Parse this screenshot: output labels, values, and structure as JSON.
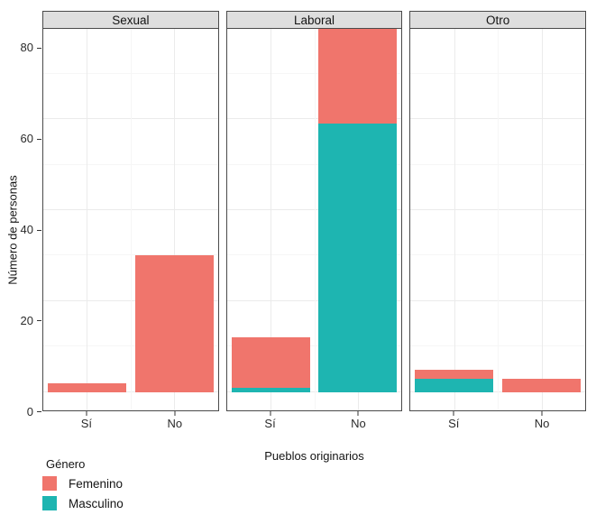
{
  "chart_data": {
    "type": "bar",
    "stacked": true,
    "title": "",
    "xlabel": "Pueblos originarios",
    "ylabel": "Número de personas",
    "legend_title": "Género",
    "legend_position": "bottom-left",
    "grid": true,
    "facets": [
      "Sexual",
      "Laboral",
      "Otro"
    ],
    "categories": [
      "Sí",
      "No"
    ],
    "yticks": [
      0,
      20,
      40,
      60,
      80
    ],
    "yticks_minor": [
      10,
      30,
      50,
      70
    ],
    "ylim": [
      -4,
      84
    ],
    "series": [
      {
        "name": "Femenino",
        "color": "#F0756C",
        "stack_position": "top",
        "values": {
          "Sexual": [
            2,
            30
          ],
          "Laboral": [
            11,
            21
          ],
          "Otro": [
            2,
            3
          ]
        }
      },
      {
        "name": "Masculino",
        "color": "#1EB5B1",
        "stack_position": "bottom",
        "values": {
          "Sexual": [
            0,
            0
          ],
          "Laboral": [
            1,
            59
          ],
          "Otro": [
            3,
            0
          ]
        }
      }
    ],
    "totals": {
      "Sexual": [
        2,
        30
      ],
      "Laboral": [
        12,
        80
      ],
      "Otro": [
        5,
        3
      ]
    }
  },
  "colors": {
    "strip_background": "#DEDEDE",
    "panel_border": "#4A4A4A",
    "grid_major": "#EBEBEB",
    "grid_minor": "#F6F6F6",
    "background": "#FFFFFF"
  }
}
